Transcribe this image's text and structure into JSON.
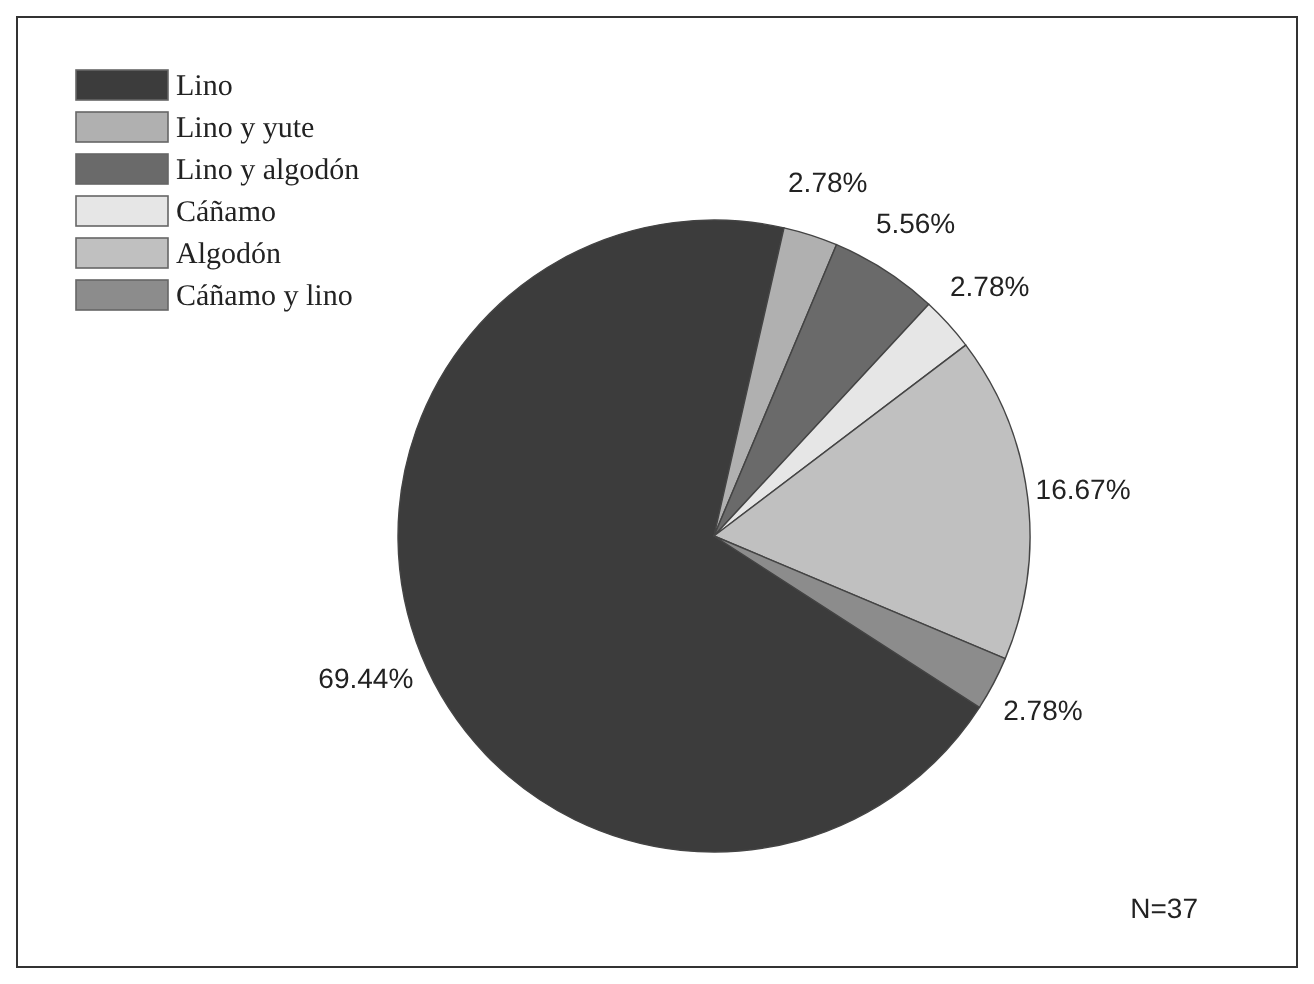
{
  "chart_data": {
    "type": "pie",
    "categories": [
      "Lino",
      "Lino y yute",
      "Lino y algodón",
      "Cáñamo",
      "Algodón",
      "Cáñamo y lino"
    ],
    "values": [
      69.44,
      2.78,
      5.56,
      2.78,
      16.67,
      2.78
    ],
    "value_labels": [
      "69.44%",
      "2.78%",
      "5.56%",
      "2.78%",
      "16.67%",
      "2.78%"
    ],
    "colors": [
      "#3c3c3c",
      "#b0b0b0",
      "#6a6a6a",
      "#e6e6e6",
      "#c0c0c0",
      "#8c8c8c"
    ],
    "legend": "top left",
    "annotations": [
      "N=37"
    ]
  }
}
